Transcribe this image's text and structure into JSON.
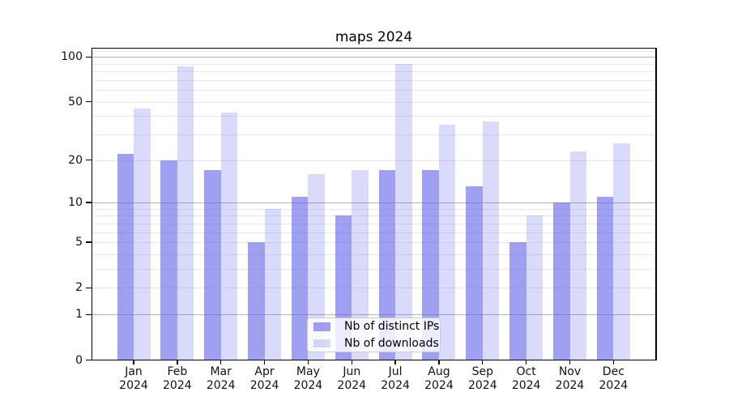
{
  "chart_data": {
    "type": "bar",
    "title": "maps 2024",
    "categories": [
      "Jan",
      "Feb",
      "Mar",
      "Apr",
      "May",
      "Jun",
      "Jul",
      "Aug",
      "Sep",
      "Oct",
      "Nov",
      "Dec"
    ],
    "x_sublabel": "2024",
    "series": [
      {
        "name": "Nb of distinct IPs",
        "key": "distinct-ips",
        "color": "#6666ea",
        "alpha": 0.62,
        "values": [
          22,
          20,
          17,
          5,
          11,
          8,
          17,
          17,
          13,
          5,
          10,
          11
        ]
      },
      {
        "name": "Nb of downloads",
        "key": "downloads",
        "color": "#6666ea",
        "alpha": 0.24,
        "values": [
          45,
          86,
          42,
          9,
          16,
          17,
          90,
          35,
          37,
          8,
          23,
          26
        ]
      }
    ],
    "yscale": "symlog-ln(1+x)",
    "ylim": [
      0,
      115
    ],
    "y_ticks": [
      0,
      1,
      2,
      5,
      10,
      20,
      50,
      100
    ],
    "y_major_gridlines": [
      1,
      10,
      100
    ],
    "y_minor_gridlines": [
      2,
      3,
      4,
      5,
      6,
      7,
      8,
      9,
      20,
      30,
      40,
      50,
      60,
      70,
      80,
      90,
      110
    ],
    "grid": true,
    "legend_position": "lower center",
    "colors": {
      "grid_major": "#b4b4b4",
      "grid_minor": "#e8e8e8",
      "spine": "#000000",
      "text": "#111111",
      "legend_border": "#cccccc",
      "legend_bg": "rgba(255,255,255,0.8)"
    }
  }
}
